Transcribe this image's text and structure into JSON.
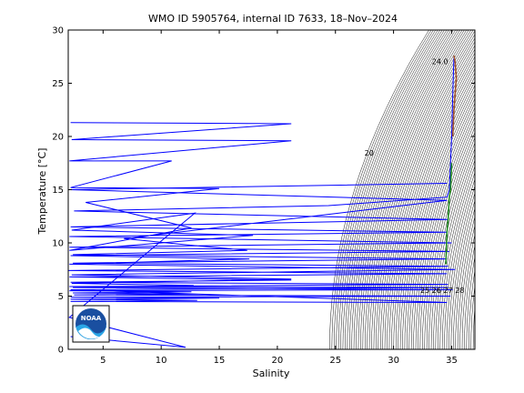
{
  "chart_data": {
    "type": "line",
    "title": "WMO ID 5905764, internal ID 7633, 18–Nov–2024",
    "xlabel": "Salinity",
    "ylabel": "Temperature [°C]",
    "xlim": [
      2,
      37
    ],
    "ylim": [
      0,
      30
    ],
    "xticks": [
      5,
      10,
      15,
      20,
      25,
      30,
      35
    ],
    "yticks": [
      0,
      5,
      10,
      15,
      20,
      25,
      30
    ],
    "grid": false,
    "logo_text": "NOAA",
    "isopycnal_labels": [
      {
        "text": "20",
        "x": 27.9,
        "y": 18.2
      },
      {
        "text": "25 26 27 28",
        "x": 34.2,
        "y": 5.3
      },
      {
        "text": "24.0",
        "x": 34.0,
        "y": 26.8
      }
    ],
    "series": [
      {
        "color": "#0000ff",
        "x": [
          35.2,
          35.1,
          35.0,
          34.9,
          34.8,
          34.6,
          24.4,
          2.5,
          34.7,
          2.2,
          34.6,
          2.1,
          35.0,
          2.1,
          34.8,
          2.2,
          17.6,
          2.1,
          35.3,
          2.3,
          21.2,
          2.3,
          12.8,
          2.4,
          35.1,
          2.1,
          12.6,
          2.4,
          13.0,
          2.5,
          34.9,
          2.2,
          15.0,
          2.2,
          13.1,
          2.2,
          34.6,
          2.2,
          34.7,
          2.1,
          34.7,
          2.2,
          21.2,
          2.1,
          34.6,
          2.0,
          34.7,
          2.4,
          34.6,
          2.4,
          17.4,
          12.3,
          6.8,
          34.6,
          2.2,
          34.6
        ],
        "y": [
          27.5,
          24.0,
          20.0,
          17.5,
          15.0,
          14.3,
          13.5,
          13.0,
          12.2,
          11.5,
          11.0,
          10.6,
          10.0,
          9.6,
          9.2,
          8.8,
          8.5,
          8.0,
          7.5,
          7.0,
          6.6,
          6.2,
          6.0,
          5.8,
          5.6,
          5.5,
          5.4,
          5.3,
          5.2,
          5.1,
          5.0,
          4.9,
          4.8,
          4.7,
          4.6,
          4.5,
          4.4,
          5.6,
          5.8,
          5.9,
          6.1,
          6.3,
          6.5,
          6.8,
          7.1,
          7.4,
          7.8,
          8.1,
          8.5,
          8.9,
          9.3,
          9.8,
          10.4,
          14.0,
          15.0,
          15.6
        ]
      },
      {
        "color": "#0000ff",
        "x": [
          2.2,
          21.2,
          2.3,
          21.2,
          2.1,
          10.9,
          2.2,
          15.0,
          3.5,
          12.6,
          2.1,
          17.9,
          2.3,
          12.9,
          2.1,
          12.1,
          2.2
        ],
        "y": [
          21.3,
          21.2,
          19.7,
          19.6,
          17.7,
          17.7,
          15.2,
          15.1,
          13.8,
          11.4,
          9.3,
          10.7,
          11.2,
          12.8,
          3.0,
          0.2,
          1.2
        ]
      },
      {
        "color": "#228b22",
        "x": [
          35.0,
          34.9,
          34.8,
          34.7,
          34.6,
          34.5
        ],
        "y": [
          17.5,
          15.0,
          14.3,
          12.2,
          11.0,
          8.0
        ]
      },
      {
        "color": "#a0522d",
        "x": [
          35.1,
          35.2,
          35.3,
          35.4,
          35.3,
          35.2
        ],
        "y": [
          20.0,
          22.5,
          24.0,
          25.5,
          27.0,
          27.6
        ]
      }
    ]
  }
}
